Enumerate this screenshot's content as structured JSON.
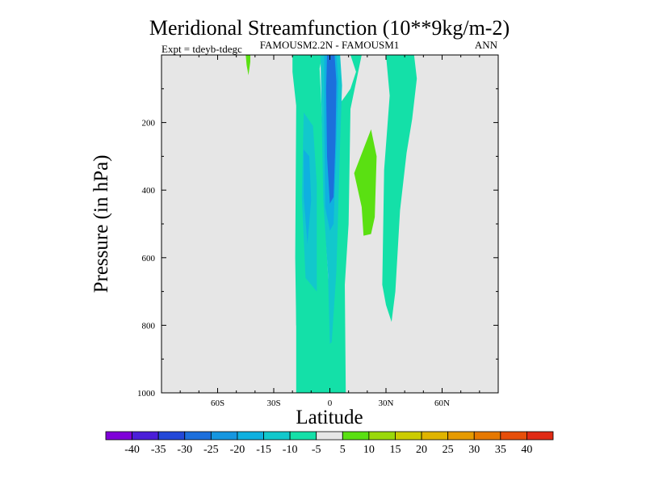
{
  "chart_data": {
    "type": "contour",
    "title": "Meridional Streamfunction (10**9kg/m-2)",
    "left_string": "Expt = tdeyb-tdegc",
    "center_string": "FAMOUSM2.2N - FAMOUSM1",
    "right_string": "ANN",
    "xlabel": "Latitude",
    "ylabel": "Pressure (in hPa)",
    "xlim": [
      -90,
      90
    ],
    "ylim": [
      1000,
      0
    ],
    "x_ticks": [
      {
        "value": -60,
        "label": "60S"
      },
      {
        "value": -30,
        "label": "30S"
      },
      {
        "value": 0,
        "label": "0"
      },
      {
        "value": 30,
        "label": "30N"
      },
      {
        "value": 60,
        "label": "60N"
      }
    ],
    "y_ticks": [
      200,
      400,
      600,
      800,
      1000
    ],
    "background_color": "#e6e6e6",
    "colorbar": {
      "levels": [
        "-40",
        "-35",
        "-30",
        "-25",
        "-20",
        "-15",
        "-10",
        "-5",
        "5",
        "10",
        "15",
        "20",
        "25",
        "30",
        "35",
        "40"
      ],
      "colors": [
        "#7f00d8",
        "#4b1ed8",
        "#2348d8",
        "#1c6fdc",
        "#1596e0",
        "#0fb0e0",
        "#12c8cc",
        "#14e0a8",
        "#e6e6e6",
        "#5ae012",
        "#9ad80a",
        "#cccc00",
        "#e0b400",
        "#e69a00",
        "#e67800",
        "#e64e0a",
        "#e02a14"
      ]
    },
    "regions": [
      {
        "band": "-10 to -5",
        "color": "#14e0a8",
        "points": [
          [
            -17,
            0
          ],
          [
            -4,
            0
          ],
          [
            -5.5,
            40
          ],
          [
            -4.5,
            150
          ],
          [
            -3,
            450
          ],
          [
            -0.5,
            700
          ],
          [
            0.5,
            850
          ],
          [
            1,
            620
          ],
          [
            3,
            330
          ],
          [
            4.5,
            150
          ],
          [
            8.5,
            120
          ],
          [
            11,
            100
          ],
          [
            14,
            50
          ],
          [
            11,
            0
          ],
          [
            17,
            0
          ],
          [
            11,
            160
          ],
          [
            10,
            500
          ],
          [
            8,
            680
          ],
          [
            8.5,
            1000
          ],
          [
            -18,
            1000
          ],
          [
            -18,
            600
          ],
          [
            -17.5,
            200
          ]
        ]
      },
      {
        "band": "-10 to -5",
        "color": "#14e0a8",
        "points": [
          [
            -20,
            0
          ],
          [
            -20,
            50
          ],
          [
            -18,
            150
          ],
          [
            -18.5,
            600
          ],
          [
            -18,
            800
          ],
          [
            -12,
            850
          ],
          [
            -13,
            700
          ],
          [
            -14,
            400
          ],
          [
            -14,
            200
          ],
          [
            -15,
            100
          ],
          [
            -17,
            0
          ]
        ]
      },
      {
        "band": "-15 to -10",
        "color": "#12c8cc",
        "points": [
          [
            -14,
            170
          ],
          [
            -9,
            210
          ],
          [
            -7,
            380
          ],
          [
            -7,
            700
          ],
          [
            -13,
            660
          ],
          [
            -15,
            420
          ]
        ]
      },
      {
        "band": "-15 to -10",
        "color": "#12c8cc",
        "points": [
          [
            -5,
            0
          ],
          [
            5.5,
            0
          ],
          [
            6.5,
            90
          ],
          [
            5.5,
            260
          ],
          [
            3.5,
            640
          ],
          [
            1,
            850
          ],
          [
            0,
            855
          ],
          [
            -1,
            650
          ],
          [
            -3.5,
            430
          ],
          [
            -4.5,
            150
          ]
        ]
      },
      {
        "band": "-20 to -15",
        "color": "#0fb0e0",
        "points": [
          [
            -14,
            280
          ],
          [
            -11,
            300
          ],
          [
            -10,
            430
          ],
          [
            -12,
            560
          ],
          [
            -14,
            420
          ]
        ]
      },
      {
        "band": "-20 to -15",
        "color": "#0fb0e0",
        "points": [
          [
            -3,
            0
          ],
          [
            3.5,
            0
          ],
          [
            4.5,
            80
          ],
          [
            3.5,
            260
          ],
          [
            2,
            500
          ],
          [
            0,
            520
          ],
          [
            -2.5,
            450
          ],
          [
            -3,
            200
          ]
        ]
      },
      {
        "band": "-25 to -20",
        "color": "#1c6fdc",
        "points": [
          [
            -1.5,
            0
          ],
          [
            2.5,
            0
          ],
          [
            3.5,
            80
          ],
          [
            3,
            250
          ],
          [
            2,
            420
          ],
          [
            0,
            440
          ],
          [
            -1.5,
            300
          ],
          [
            -2,
            100
          ]
        ]
      },
      {
        "band": "-10 to -5",
        "color": "#14e0a8",
        "points": [
          [
            30,
            0
          ],
          [
            45,
            0
          ],
          [
            46.5,
            70
          ],
          [
            44,
            190
          ],
          [
            41,
            290
          ],
          [
            37.5,
            460
          ],
          [
            35,
            700
          ],
          [
            33,
            790
          ],
          [
            30,
            740
          ],
          [
            28,
            680
          ],
          [
            29,
            340
          ],
          [
            32,
            120
          ]
        ]
      },
      {
        "band": "5 to 10",
        "color": "#5ae012",
        "points": [
          [
            -45,
            0
          ],
          [
            -42.5,
            0
          ],
          [
            -42.5,
            20
          ],
          [
            -43.5,
            60
          ],
          [
            -44.5,
            30
          ]
        ]
      },
      {
        "band": "5 to 10",
        "color": "#5ae012",
        "points": [
          [
            22,
            220
          ],
          [
            25,
            300
          ],
          [
            24,
            480
          ],
          [
            22,
            530
          ],
          [
            18,
            535
          ],
          [
            17,
            450
          ],
          [
            13,
            350
          ]
        ]
      }
    ]
  }
}
